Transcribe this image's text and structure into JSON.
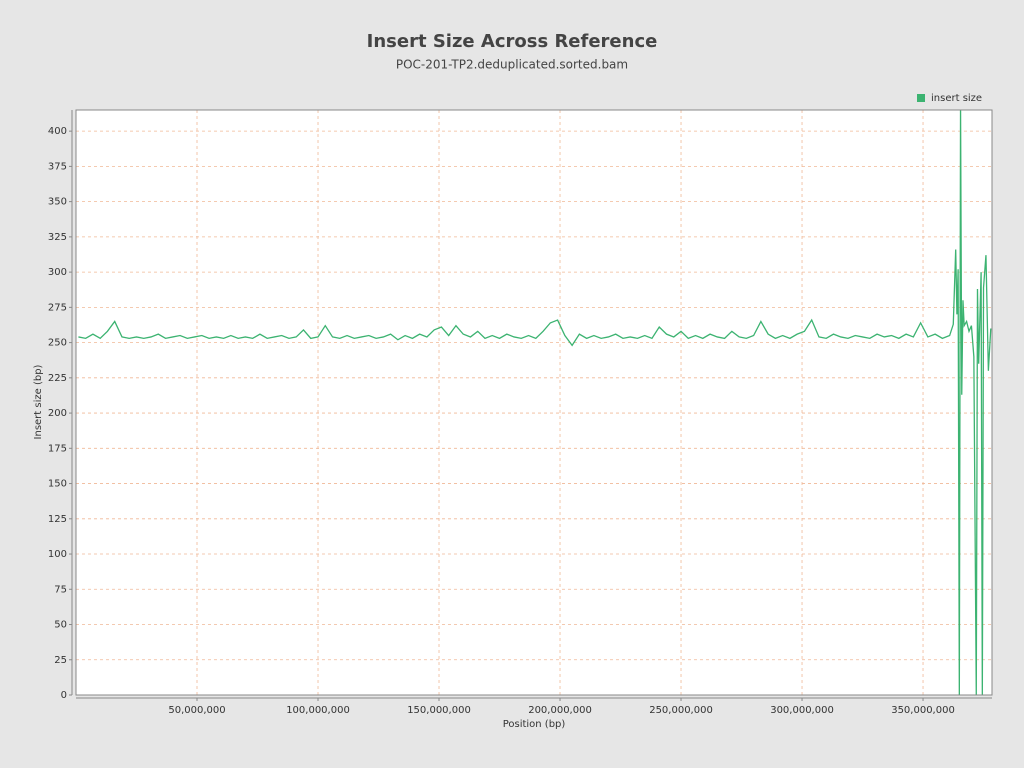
{
  "chart_data": {
    "type": "line",
    "title": "Insert Size Across Reference",
    "subtitle": "POC-201-TP2.deduplicated.sorted.bam",
    "xlabel": "Position (bp)",
    "ylabel": "Insert size (bp)",
    "legend": "top-right",
    "grid": true,
    "xlim": [
      0,
      378500000
    ],
    "ylim": [
      0,
      415
    ],
    "xticks": [
      {
        "value": 50000000,
        "label": "50,000,000"
      },
      {
        "value": 100000000,
        "label": "100,000,000"
      },
      {
        "value": 150000000,
        "label": "150,000,000"
      },
      {
        "value": 200000000,
        "label": "200,000,000"
      },
      {
        "value": 250000000,
        "label": "250,000,000"
      },
      {
        "value": 300000000,
        "label": "300,000,000"
      },
      {
        "value": 350000000,
        "label": "350,000,000"
      }
    ],
    "yticks": [
      0,
      25,
      50,
      75,
      100,
      125,
      150,
      175,
      200,
      225,
      250,
      275,
      300,
      325,
      350,
      375,
      400
    ],
    "x": [
      1000000,
      4000000,
      7000000,
      10000000,
      13000000,
      16000000,
      19000000,
      22000000,
      25000000,
      28000000,
      31000000,
      34000000,
      37000000,
      40000000,
      43000000,
      46000000,
      49000000,
      52000000,
      55000000,
      58000000,
      61000000,
      64000000,
      67000000,
      70000000,
      73000000,
      76000000,
      79000000,
      82000000,
      85000000,
      88000000,
      91000000,
      94000000,
      97000000,
      100000000,
      103000000,
      106000000,
      109000000,
      112000000,
      115000000,
      118000000,
      121000000,
      124000000,
      127000000,
      130000000,
      133000000,
      136000000,
      139000000,
      142000000,
      145000000,
      148000000,
      151000000,
      154000000,
      157000000,
      160000000,
      163000000,
      166000000,
      169000000,
      172000000,
      175000000,
      178000000,
      181000000,
      184000000,
      187000000,
      190000000,
      193000000,
      196000000,
      199000000,
      202000000,
      205000000,
      208000000,
      211000000,
      214000000,
      217000000,
      220000000,
      223000000,
      226000000,
      229000000,
      232000000,
      235000000,
      238000000,
      241000000,
      244000000,
      247000000,
      250000000,
      253000000,
      256000000,
      259000000,
      262000000,
      265000000,
      268000000,
      271000000,
      274000000,
      277000000,
      280000000,
      283000000,
      286000000,
      289000000,
      292000000,
      295000000,
      298000000,
      301000000,
      304000000,
      307000000,
      310000000,
      313000000,
      316000000,
      319000000,
      322000000,
      325000000,
      328000000,
      331000000,
      334000000,
      337000000,
      340000000,
      343000000,
      346000000,
      349000000,
      352000000,
      355000000,
      358000000,
      361000000,
      362500000,
      363500000,
      364000000,
      364500000,
      365000000,
      365500000,
      366000000,
      366500000,
      367000000,
      368000000,
      369000000,
      370000000,
      371000000,
      372000000,
      372500000,
      373000000,
      374000000,
      374500000,
      375000000,
      376000000,
      377000000,
      378000000
    ],
    "series": [
      {
        "name": "insert size",
        "color": "#3cb371",
        "values": [
          254,
          253,
          256,
          253,
          258,
          265,
          254,
          253,
          254,
          253,
          254,
          256,
          253,
          254,
          255,
          253,
          254,
          255,
          253,
          254,
          253,
          255,
          253,
          254,
          253,
          256,
          253,
          254,
          255,
          253,
          254,
          259,
          253,
          254,
          262,
          254,
          253,
          255,
          253,
          254,
          255,
          253,
          254,
          256,
          252,
          255,
          253,
          256,
          254,
          259,
          261,
          255,
          262,
          256,
          254,
          258,
          253,
          255,
          253,
          256,
          254,
          253,
          255,
          253,
          258,
          264,
          266,
          255,
          248,
          256,
          253,
          255,
          253,
          254,
          256,
          253,
          254,
          253,
          255,
          253,
          261,
          256,
          254,
          258,
          253,
          255,
          253,
          256,
          254,
          253,
          258,
          254,
          253,
          255,
          265,
          256,
          253,
          255,
          253,
          256,
          258,
          266,
          254,
          253,
          256,
          254,
          253,
          255,
          254,
          253,
          256,
          254,
          255,
          253,
          256,
          254,
          264,
          254,
          256,
          253,
          255,
          263,
          316,
          270,
          302,
          0,
          420,
          213,
          280,
          262,
          265,
          258,
          262,
          240,
          0,
          288,
          235,
          300,
          0,
          289,
          312,
          230,
          260
        ]
      }
    ]
  }
}
